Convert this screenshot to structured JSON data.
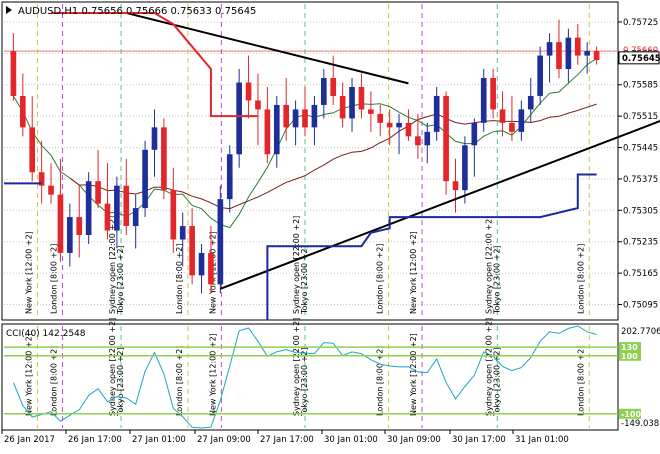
{
  "header": {
    "symbol_line": "AUDUSD,H1  0.75656 0.75666 0.75633 0.75645"
  },
  "price_axis": {
    "ticks": [
      "0.75725",
      "0.75655",
      "0.75585",
      "0.75515",
      "0.75445",
      "0.75375",
      "0.75305",
      "0.75235",
      "0.75165",
      "0.75095"
    ],
    "current_price": "0.75645",
    "current_price_shadow": "0.75660"
  },
  "sessions": {
    "labels": [
      "London [8:00 +2]",
      "New York [12:00 +2]",
      "Sydney open [22:00 +2]",
      "Tokyo [23:00 +2]"
    ]
  },
  "time_axis": {
    "labels": [
      "26 Jan 2017",
      "26 Jan 17:00",
      "27 Jan 01:00",
      "27 Jan 09:00",
      "27 Jan 17:00",
      "30 Jan 01:00",
      "30 Jan 09:00",
      "30 Jan 17:00",
      "31 Jan 01:00"
    ]
  },
  "cci": {
    "title": "CCI(40) 142.2548",
    "max_label": "202.7706",
    "min_label": "-149.0383",
    "level_high": "130",
    "level_mid": "100",
    "level_low": "-100"
  },
  "colors": {
    "bull": "#1f2f9a",
    "bear": "#e3262b",
    "ma_fast": "#2e7d32",
    "ma_slow": "#7a1f1f",
    "cci_line": "#1ea5c5",
    "cci_level": "#8fd14f",
    "trend": "#000000",
    "step_red": "#e3262b",
    "step_blue": "#1a2a9a"
  },
  "chart_data": {
    "type": "candlestick",
    "symbol": "AUDUSD",
    "timeframe": "H1",
    "ylim": [
      0.75065,
      0.75765
    ],
    "candles": [
      {
        "o": 0.7566,
        "h": 0.757,
        "l": 0.7555,
        "c": 0.7556
      },
      {
        "o": 0.7556,
        "h": 0.7561,
        "l": 0.7547,
        "c": 0.7549
      },
      {
        "o": 0.7549,
        "h": 0.7556,
        "l": 0.7537,
        "c": 0.7539
      },
      {
        "o": 0.7539,
        "h": 0.7546,
        "l": 0.7532,
        "c": 0.7536
      },
      {
        "o": 0.7536,
        "h": 0.7541,
        "l": 0.7532,
        "c": 0.7534
      },
      {
        "o": 0.7534,
        "h": 0.7542,
        "l": 0.7519,
        "c": 0.7521
      },
      {
        "o": 0.7521,
        "h": 0.7532,
        "l": 0.7518,
        "c": 0.7529
      },
      {
        "o": 0.7529,
        "h": 0.7536,
        "l": 0.752,
        "c": 0.7525
      },
      {
        "o": 0.7525,
        "h": 0.7539,
        "l": 0.7523,
        "c": 0.7537
      },
      {
        "o": 0.7537,
        "h": 0.7544,
        "l": 0.7531,
        "c": 0.7532
      },
      {
        "o": 0.7532,
        "h": 0.7541,
        "l": 0.7524,
        "c": 0.7526
      },
      {
        "o": 0.7526,
        "h": 0.7538,
        "l": 0.7522,
        "c": 0.7536
      },
      {
        "o": 0.7536,
        "h": 0.7542,
        "l": 0.7525,
        "c": 0.7527
      },
      {
        "o": 0.7527,
        "h": 0.7534,
        "l": 0.7522,
        "c": 0.7531
      },
      {
        "o": 0.7531,
        "h": 0.7546,
        "l": 0.7529,
        "c": 0.7544
      },
      {
        "o": 0.7544,
        "h": 0.7553,
        "l": 0.7538,
        "c": 0.7549
      },
      {
        "o": 0.7549,
        "h": 0.7551,
        "l": 0.7533,
        "c": 0.7535
      },
      {
        "o": 0.7535,
        "h": 0.754,
        "l": 0.7521,
        "c": 0.7524
      },
      {
        "o": 0.7524,
        "h": 0.753,
        "l": 0.7518,
        "c": 0.7527
      },
      {
        "o": 0.7527,
        "h": 0.7531,
        "l": 0.7514,
        "c": 0.7516
      },
      {
        "o": 0.7516,
        "h": 0.7523,
        "l": 0.7512,
        "c": 0.7521
      },
      {
        "o": 0.7521,
        "h": 0.7527,
        "l": 0.7512,
        "c": 0.7514
      },
      {
        "o": 0.7514,
        "h": 0.7536,
        "l": 0.7512,
        "c": 0.7533
      },
      {
        "o": 0.7533,
        "h": 0.7545,
        "l": 0.753,
        "c": 0.7543
      },
      {
        "o": 0.7543,
        "h": 0.7562,
        "l": 0.754,
        "c": 0.7559
      },
      {
        "o": 0.7559,
        "h": 0.7565,
        "l": 0.7551,
        "c": 0.7555
      },
      {
        "o": 0.7555,
        "h": 0.7561,
        "l": 0.7545,
        "c": 0.7553
      },
      {
        "o": 0.7553,
        "h": 0.7558,
        "l": 0.7541,
        "c": 0.7543
      },
      {
        "o": 0.7543,
        "h": 0.7556,
        "l": 0.754,
        "c": 0.7554
      },
      {
        "o": 0.7554,
        "h": 0.756,
        "l": 0.7546,
        "c": 0.7549
      },
      {
        "o": 0.7549,
        "h": 0.7555,
        "l": 0.7545,
        "c": 0.7553
      },
      {
        "o": 0.7553,
        "h": 0.7558,
        "l": 0.7547,
        "c": 0.7549
      },
      {
        "o": 0.7549,
        "h": 0.7556,
        "l": 0.7545,
        "c": 0.7554
      },
      {
        "o": 0.7554,
        "h": 0.7562,
        "l": 0.7551,
        "c": 0.756
      },
      {
        "o": 0.756,
        "h": 0.7565,
        "l": 0.7554,
        "c": 0.7556
      },
      {
        "o": 0.7556,
        "h": 0.7559,
        "l": 0.7549,
        "c": 0.7551
      },
      {
        "o": 0.7551,
        "h": 0.756,
        "l": 0.7548,
        "c": 0.7558
      },
      {
        "o": 0.7558,
        "h": 0.7561,
        "l": 0.7551,
        "c": 0.7553
      },
      {
        "o": 0.7553,
        "h": 0.7557,
        "l": 0.7548,
        "c": 0.7552
      },
      {
        "o": 0.7552,
        "h": 0.7554,
        "l": 0.7547,
        "c": 0.755
      },
      {
        "o": 0.755,
        "h": 0.7553,
        "l": 0.7545,
        "c": 0.7549
      },
      {
        "o": 0.7549,
        "h": 0.7552,
        "l": 0.7543,
        "c": 0.755
      },
      {
        "o": 0.755,
        "h": 0.7553,
        "l": 0.7546,
        "c": 0.7547
      },
      {
        "o": 0.7547,
        "h": 0.7552,
        "l": 0.7542,
        "c": 0.7545
      },
      {
        "o": 0.7545,
        "h": 0.755,
        "l": 0.7541,
        "c": 0.7548
      },
      {
        "o": 0.7548,
        "h": 0.7558,
        "l": 0.7546,
        "c": 0.7556
      },
      {
        "o": 0.7556,
        "h": 0.7557,
        "l": 0.7534,
        "c": 0.7537
      },
      {
        "o": 0.7537,
        "h": 0.7542,
        "l": 0.753,
        "c": 0.7535
      },
      {
        "o": 0.7535,
        "h": 0.7547,
        "l": 0.7532,
        "c": 0.7545
      },
      {
        "o": 0.7545,
        "h": 0.7551,
        "l": 0.7538,
        "c": 0.755
      },
      {
        "o": 0.755,
        "h": 0.7562,
        "l": 0.7548,
        "c": 0.756
      },
      {
        "o": 0.756,
        "h": 0.7562,
        "l": 0.7551,
        "c": 0.7553
      },
      {
        "o": 0.7553,
        "h": 0.7557,
        "l": 0.7547,
        "c": 0.755
      },
      {
        "o": 0.755,
        "h": 0.7556,
        "l": 0.7546,
        "c": 0.7548
      },
      {
        "o": 0.7548,
        "h": 0.7555,
        "l": 0.7546,
        "c": 0.7553
      },
      {
        "o": 0.7553,
        "h": 0.756,
        "l": 0.755,
        "c": 0.7556
      },
      {
        "o": 0.7556,
        "h": 0.7567,
        "l": 0.7554,
        "c": 0.7565
      },
      {
        "o": 0.7565,
        "h": 0.757,
        "l": 0.7559,
        "c": 0.7568
      },
      {
        "o": 0.7568,
        "h": 0.7573,
        "l": 0.756,
        "c": 0.7562
      },
      {
        "o": 0.7562,
        "h": 0.7571,
        "l": 0.7559,
        "c": 0.7569
      },
      {
        "o": 0.7569,
        "h": 0.7572,
        "l": 0.7563,
        "c": 0.7565
      },
      {
        "o": 0.7565,
        "h": 0.7568,
        "l": 0.7561,
        "c": 0.7566
      },
      {
        "o": 0.7566,
        "h": 0.7567,
        "l": 0.7563,
        "c": 0.7564
      }
    ]
  }
}
